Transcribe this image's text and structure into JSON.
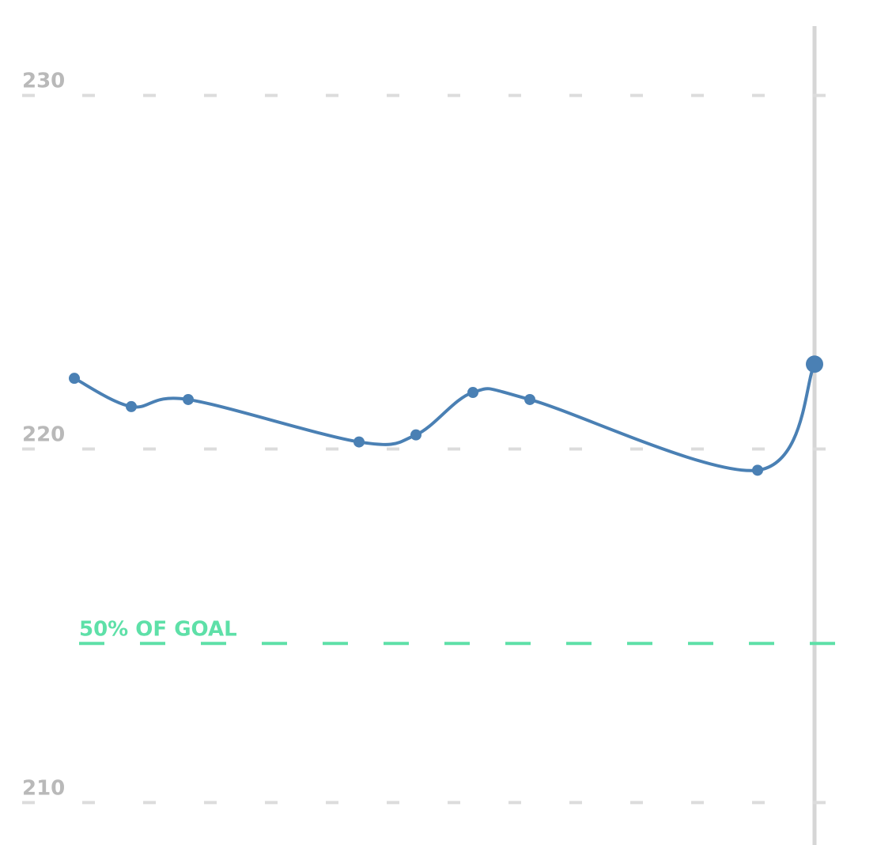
{
  "chart_data": {
    "type": "line",
    "x": [
      0,
      1,
      2,
      5,
      6,
      7,
      8,
      12,
      13
    ],
    "series": [
      {
        "color": "#4a80b4",
        "values": [
          222.0,
          221.2,
          221.4,
          220.2,
          220.4,
          221.6,
          221.4,
          219.4,
          222.4
        ]
      }
    ],
    "xlim": [
      0,
      13
    ],
    "ylim": [
      208.8,
      232.7
    ],
    "yticks": [
      210,
      220,
      230
    ],
    "grid": true,
    "goal": {
      "value": 214.5,
      "label": "50% OF GOAL",
      "color": "#5ee0a8"
    }
  }
}
